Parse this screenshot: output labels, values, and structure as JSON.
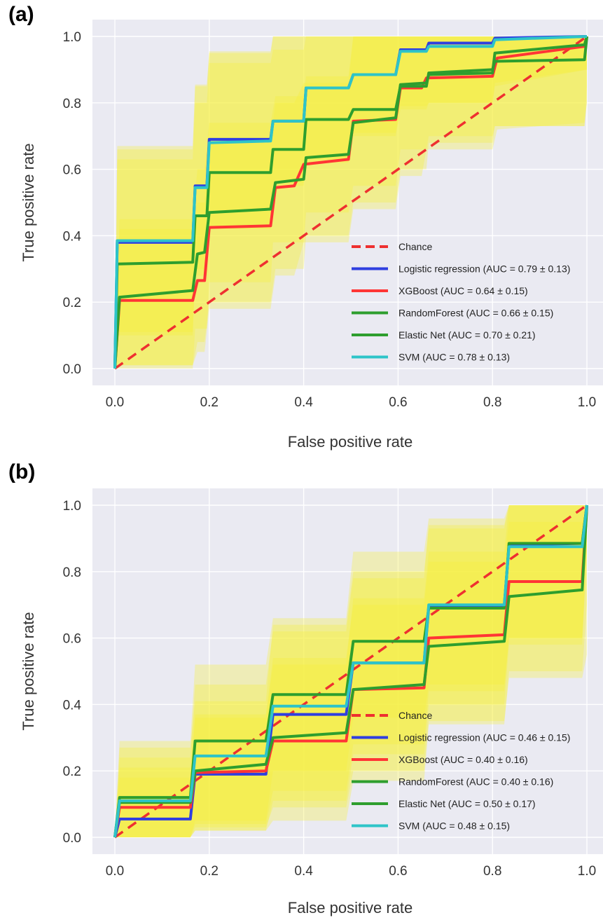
{
  "figure": {
    "panel_labels": [
      "(a)",
      "(b)"
    ]
  },
  "chart_data": [
    {
      "type": "line",
      "panel": "(a)",
      "xlabel": "False positive rate",
      "ylabel": "True positive rate",
      "xlim": [
        0,
        1
      ],
      "ylim": [
        0,
        1
      ],
      "xticks": [
        "0.0",
        "0.2",
        "0.4",
        "0.6",
        "0.8",
        "1.0"
      ],
      "yticks": [
        "0.0",
        "0.2",
        "0.4",
        "0.6",
        "0.8",
        "1.0"
      ],
      "grid": true,
      "legend_position": "bottom-right",
      "band_color": "#f5ee3c",
      "chance": {
        "label": "Chance",
        "color": "#ee3030",
        "x": [
          0,
          1
        ],
        "y": [
          0,
          1
        ]
      },
      "series": [
        {
          "name": "Logistic regression (AUC = 0.79 ± 0.13)",
          "color": "#2f3fe0",
          "x": [
            0,
            0.005,
            0.165,
            0.17,
            0.195,
            0.2,
            0.33,
            0.335,
            0.4,
            0.405,
            0.495,
            0.505,
            0.595,
            0.605,
            0.66,
            0.665,
            0.8,
            0.805,
            1.0
          ],
          "y": [
            0,
            0.38,
            0.38,
            0.55,
            0.55,
            0.69,
            0.69,
            0.745,
            0.745,
            0.845,
            0.845,
            0.885,
            0.885,
            0.96,
            0.96,
            0.98,
            0.98,
            0.995,
            1.0
          ],
          "band_low": [
            0,
            0.1,
            0.1,
            0.28,
            0.28,
            0.42,
            0.42,
            0.55,
            0.55,
            0.62,
            0.62,
            0.7,
            0.7,
            0.78,
            0.78,
            0.8,
            0.8,
            0.85,
            0.9
          ],
          "band_high": [
            0,
            0.67,
            0.67,
            0.855,
            0.855,
            0.955,
            0.955,
            1.0,
            1.0,
            1.0,
            1.0,
            1.0,
            1.0,
            1.0,
            1.0,
            1.0,
            1.0,
            1.0,
            1.0
          ]
        },
        {
          "name": "XGBoost (AUC = 0.64 ± 0.15)",
          "color": "#ff3535",
          "x": [
            0,
            0.01,
            0.165,
            0.175,
            0.19,
            0.2,
            0.33,
            0.34,
            0.38,
            0.4,
            0.495,
            0.505,
            0.595,
            0.605,
            0.65,
            0.66,
            0.8,
            0.81,
            0.995,
            1.0
          ],
          "y": [
            0,
            0.205,
            0.205,
            0.265,
            0.265,
            0.425,
            0.43,
            0.545,
            0.55,
            0.615,
            0.63,
            0.745,
            0.75,
            0.845,
            0.845,
            0.875,
            0.88,
            0.935,
            0.97,
            1.0
          ],
          "band_low": [
            0,
            0.01,
            0.01,
            0.05,
            0.05,
            0.18,
            0.18,
            0.28,
            0.28,
            0.38,
            0.38,
            0.48,
            0.48,
            0.58,
            0.58,
            0.66,
            0.66,
            0.72,
            0.74,
            0.8
          ],
          "band_high": [
            0,
            0.42,
            0.42,
            0.5,
            0.5,
            0.68,
            0.68,
            0.8,
            0.8,
            0.86,
            0.86,
            1.0,
            1.0,
            1.0,
            1.0,
            1.0,
            1.0,
            1.0,
            1.0,
            1.0
          ]
        },
        {
          "name": "RandomForest (AUC = 0.66 ± 0.15)",
          "color": "#2e9e2e",
          "x": [
            0,
            0.01,
            0.165,
            0.175,
            0.19,
            0.2,
            0.33,
            0.34,
            0.4,
            0.405,
            0.495,
            0.505,
            0.595,
            0.605,
            0.66,
            0.665,
            0.8,
            0.805,
            0.995,
            1.0
          ],
          "y": [
            0,
            0.215,
            0.235,
            0.345,
            0.35,
            0.47,
            0.48,
            0.56,
            0.57,
            0.635,
            0.645,
            0.74,
            0.755,
            0.855,
            0.86,
            0.885,
            0.89,
            0.95,
            0.975,
            1.0
          ],
          "band_low": [
            0,
            0.01,
            0.01,
            0.08,
            0.08,
            0.2,
            0.2,
            0.3,
            0.3,
            0.4,
            0.4,
            0.5,
            0.5,
            0.6,
            0.6,
            0.68,
            0.68,
            0.73,
            0.73,
            0.8
          ],
          "band_high": [
            0,
            0.45,
            0.45,
            0.6,
            0.6,
            0.74,
            0.74,
            0.82,
            0.82,
            0.88,
            0.88,
            1.0,
            1.0,
            1.0,
            1.0,
            1.0,
            1.0,
            1.0,
            1.0,
            1.0
          ]
        },
        {
          "name": "Elastic Net (AUC = 0.70 ± 0.21)",
          "color": "#2e9e2e",
          "x": [
            0,
            0.005,
            0.165,
            0.17,
            0.195,
            0.2,
            0.33,
            0.335,
            0.4,
            0.405,
            0.495,
            0.505,
            0.595,
            0.605,
            0.66,
            0.665,
            0.8,
            0.805,
            0.995,
            1.0
          ],
          "y": [
            0,
            0.315,
            0.32,
            0.46,
            0.46,
            0.59,
            0.59,
            0.66,
            0.66,
            0.75,
            0.75,
            0.78,
            0.78,
            0.85,
            0.85,
            0.89,
            0.9,
            0.925,
            0.93,
            1.0
          ],
          "band_low": [
            0,
            0.0,
            0.0,
            0.12,
            0.12,
            0.26,
            0.26,
            0.38,
            0.38,
            0.47,
            0.47,
            0.55,
            0.55,
            0.66,
            0.66,
            0.7,
            0.7,
            0.73,
            0.73,
            0.85
          ],
          "band_high": [
            0,
            0.63,
            0.63,
            0.8,
            0.8,
            0.92,
            0.92,
            0.96,
            0.96,
            1.0,
            1.0,
            1.0,
            1.0,
            1.0,
            1.0,
            1.0,
            1.0,
            1.0,
            1.0,
            1.0
          ]
        },
        {
          "name": "SVM (AUC = 0.78 ± 0.13)",
          "color": "#2ec4c8",
          "x": [
            0,
            0.005,
            0.165,
            0.17,
            0.195,
            0.2,
            0.33,
            0.335,
            0.4,
            0.405,
            0.495,
            0.505,
            0.595,
            0.605,
            0.66,
            0.665,
            0.8,
            0.805,
            1.0
          ],
          "y": [
            0,
            0.385,
            0.385,
            0.545,
            0.545,
            0.68,
            0.685,
            0.745,
            0.745,
            0.845,
            0.845,
            0.885,
            0.885,
            0.955,
            0.955,
            0.97,
            0.97,
            0.99,
            1.0
          ],
          "band_low": [
            0,
            0.11,
            0.11,
            0.3,
            0.3,
            0.43,
            0.43,
            0.56,
            0.56,
            0.63,
            0.63,
            0.71,
            0.71,
            0.79,
            0.79,
            0.8,
            0.8,
            0.86,
            0.9
          ],
          "band_high": [
            0,
            0.66,
            0.66,
            0.85,
            0.85,
            0.95,
            0.95,
            1.0,
            1.0,
            1.0,
            1.0,
            1.0,
            1.0,
            1.0,
            1.0,
            1.0,
            1.0,
            1.0,
            1.0
          ]
        }
      ]
    },
    {
      "type": "line",
      "panel": "(b)",
      "xlabel": "False positive rate",
      "ylabel": "True positive rate",
      "xlim": [
        0,
        1
      ],
      "ylim": [
        0,
        1
      ],
      "xticks": [
        "0.0",
        "0.2",
        "0.4",
        "0.6",
        "0.8",
        "1.0"
      ],
      "yticks": [
        "0.0",
        "0.2",
        "0.4",
        "0.6",
        "0.8",
        "1.0"
      ],
      "grid": true,
      "legend_position": "bottom-right",
      "band_color": "#f5ee3c",
      "chance": {
        "label": "Chance",
        "color": "#ee3030",
        "x": [
          0,
          1
        ],
        "y": [
          0,
          1
        ]
      },
      "series": [
        {
          "name": "Logistic regression (AUC = 0.46 ± 0.15)",
          "color": "#2f3fe0",
          "x": [
            0,
            0.01,
            0.16,
            0.17,
            0.32,
            0.335,
            0.49,
            0.505,
            0.655,
            0.665,
            0.825,
            0.835,
            0.99,
            1.0
          ],
          "y": [
            0,
            0.055,
            0.055,
            0.19,
            0.19,
            0.37,
            0.37,
            0.525,
            0.525,
            0.695,
            0.695,
            0.88,
            0.885,
            1.0
          ],
          "band_low": [
            0,
            0.0,
            0.0,
            0.02,
            0.02,
            0.11,
            0.11,
            0.25,
            0.25,
            0.4,
            0.4,
            0.58,
            0.58,
            0.85
          ],
          "band_high": [
            0,
            0.27,
            0.27,
            0.41,
            0.41,
            0.64,
            0.64,
            0.8,
            0.8,
            0.93,
            0.93,
            1.0,
            1.0,
            1.0
          ]
        },
        {
          "name": "XGBoost (AUC = 0.40 ± 0.16)",
          "color": "#ff3535",
          "x": [
            0,
            0.01,
            0.16,
            0.17,
            0.32,
            0.335,
            0.49,
            0.505,
            0.655,
            0.665,
            0.825,
            0.835,
            0.99,
            1.0
          ],
          "y": [
            0,
            0.09,
            0.09,
            0.195,
            0.2,
            0.29,
            0.29,
            0.445,
            0.45,
            0.6,
            0.61,
            0.77,
            0.77,
            1.0
          ],
          "band_low": [
            0,
            0.0,
            0.0,
            0.02,
            0.02,
            0.05,
            0.05,
            0.17,
            0.17,
            0.34,
            0.34,
            0.5,
            0.5,
            0.7
          ],
          "band_high": [
            0,
            0.18,
            0.18,
            0.36,
            0.36,
            0.52,
            0.52,
            0.72,
            0.72,
            0.86,
            0.86,
            1.0,
            1.0,
            1.0
          ]
        },
        {
          "name": "RandomForest (AUC = 0.40 ± 0.16)",
          "color": "#2e9e2e",
          "x": [
            0,
            0.01,
            0.16,
            0.17,
            0.32,
            0.335,
            0.49,
            0.505,
            0.655,
            0.665,
            0.825,
            0.835,
            0.99,
            1.0
          ],
          "y": [
            0,
            0.105,
            0.105,
            0.2,
            0.22,
            0.3,
            0.315,
            0.445,
            0.46,
            0.575,
            0.59,
            0.725,
            0.745,
            1.0
          ],
          "band_low": [
            0,
            0.0,
            0.0,
            0.03,
            0.03,
            0.09,
            0.09,
            0.2,
            0.2,
            0.35,
            0.35,
            0.48,
            0.48,
            0.55
          ],
          "band_high": [
            0,
            0.21,
            0.21,
            0.37,
            0.37,
            0.54,
            0.54,
            0.7,
            0.7,
            0.83,
            0.83,
            0.95,
            0.95,
            1.0
          ]
        },
        {
          "name": "Elastic Net (AUC = 0.50 ± 0.17)",
          "color": "#2e9e2e",
          "x": [
            0,
            0.01,
            0.16,
            0.17,
            0.32,
            0.335,
            0.49,
            0.505,
            0.655,
            0.665,
            0.825,
            0.835,
            0.99,
            1.0
          ],
          "y": [
            0,
            0.12,
            0.12,
            0.29,
            0.29,
            0.43,
            0.43,
            0.59,
            0.59,
            0.69,
            0.69,
            0.885,
            0.885,
            1.0
          ],
          "band_low": [
            0,
            0.0,
            0.0,
            0.05,
            0.05,
            0.2,
            0.2,
            0.36,
            0.36,
            0.46,
            0.46,
            0.6,
            0.6,
            0.9
          ],
          "band_high": [
            0,
            0.29,
            0.29,
            0.52,
            0.52,
            0.66,
            0.66,
            0.86,
            0.86,
            0.96,
            0.96,
            1.0,
            1.0,
            1.0
          ]
        },
        {
          "name": "SVM (AUC = 0.48 ± 0.15)",
          "color": "#2ec4c8",
          "x": [
            0,
            0.01,
            0.16,
            0.17,
            0.32,
            0.335,
            0.49,
            0.505,
            0.655,
            0.665,
            0.825,
            0.835,
            0.99,
            1.0
          ],
          "y": [
            0,
            0.11,
            0.11,
            0.245,
            0.245,
            0.395,
            0.395,
            0.525,
            0.525,
            0.7,
            0.7,
            0.875,
            0.875,
            1.0
          ],
          "band_low": [
            0,
            0.0,
            0.0,
            0.04,
            0.04,
            0.14,
            0.14,
            0.28,
            0.28,
            0.44,
            0.44,
            0.6,
            0.6,
            0.86
          ],
          "band_high": [
            0,
            0.24,
            0.24,
            0.46,
            0.46,
            0.62,
            0.62,
            0.78,
            0.78,
            0.94,
            0.94,
            1.0,
            1.0,
            1.0
          ]
        }
      ]
    }
  ]
}
